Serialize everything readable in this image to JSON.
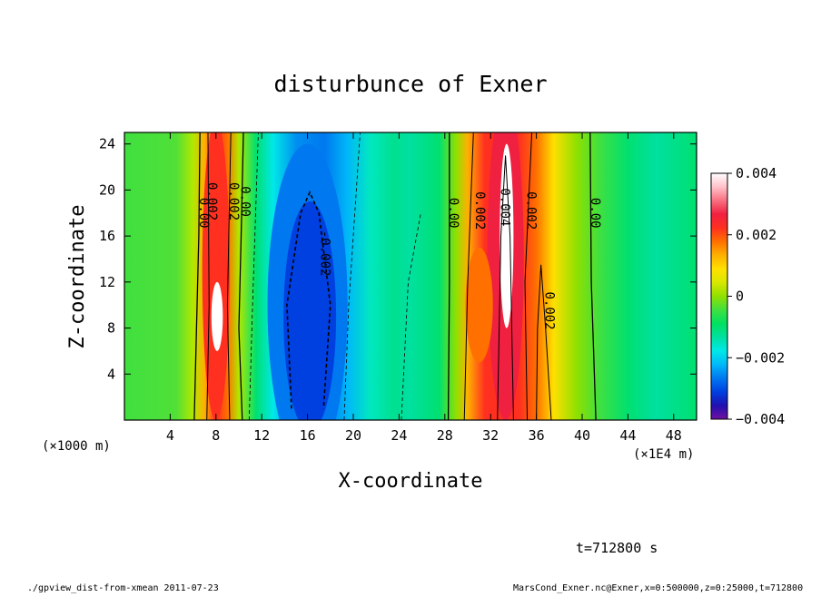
{
  "chart_data": {
    "type": "heatmap",
    "title": "disturbunce of Exner",
    "xlabel": "X-coordinate",
    "ylabel": "Z-coordinate",
    "x_unit_left": "(×1000 m)",
    "x_unit_right": "(×1E4 m)",
    "xlim": [
      0,
      50
    ],
    "ylim": [
      0,
      25
    ],
    "x_ticks": [
      4,
      8,
      12,
      16,
      20,
      24,
      28,
      32,
      36,
      40,
      44,
      48
    ],
    "y_ticks": [
      4,
      8,
      12,
      16,
      20,
      24
    ],
    "colorbar": {
      "min": -0.004,
      "max": 0.004,
      "tick_values": [
        0.004,
        0.002,
        0,
        -0.002,
        -0.004
      ],
      "tick_labels": [
        "0.004",
        "0.002",
        "0",
        "−0.002",
        "−0.004"
      ]
    },
    "contour_labels": [
      {
        "text": "0.00",
        "x": 6.6,
        "y": 18
      },
      {
        "text": "0.002",
        "x": 7.3,
        "y": 19
      },
      {
        "text": "0.002",
        "x": 9.2,
        "y": 19
      },
      {
        "text": "0.00",
        "x": 10.2,
        "y": 19
      },
      {
        "text": "-0.002",
        "x": 17.2,
        "y": 14.5
      },
      {
        "text": "0.00",
        "x": 28.4,
        "y": 18
      },
      {
        "text": "0.002",
        "x": 30.7,
        "y": 18.2
      },
      {
        "text": "0.004",
        "x": 32.9,
        "y": 18.5
      },
      {
        "text": "0.002",
        "x": 35.2,
        "y": 18.2
      },
      {
        "text": "0.00",
        "x": 40.8,
        "y": 18
      },
      {
        "text": "0.002",
        "x": 36.8,
        "y": 9.5
      }
    ],
    "time_label": "t=712800 s"
  },
  "footer": {
    "left": "./gpview_dist-from-xmean  2011-07-23",
    "right": "MarsCond_Exner.nc@Exner,x=0:500000,z=0:25000,t=712800"
  },
  "palette": [
    "#7010a0",
    "#2010b0",
    "#0040e0",
    "#0078f0",
    "#00b8f8",
    "#00e8e8",
    "#00e0a0",
    "#00e060",
    "#40e040",
    "#90e000",
    "#d8e800",
    "#ffe000",
    "#ffb000",
    "#ff7000",
    "#ff3020",
    "#f02040",
    "#f87080",
    "#ffc0c8",
    "#ffffff"
  ]
}
